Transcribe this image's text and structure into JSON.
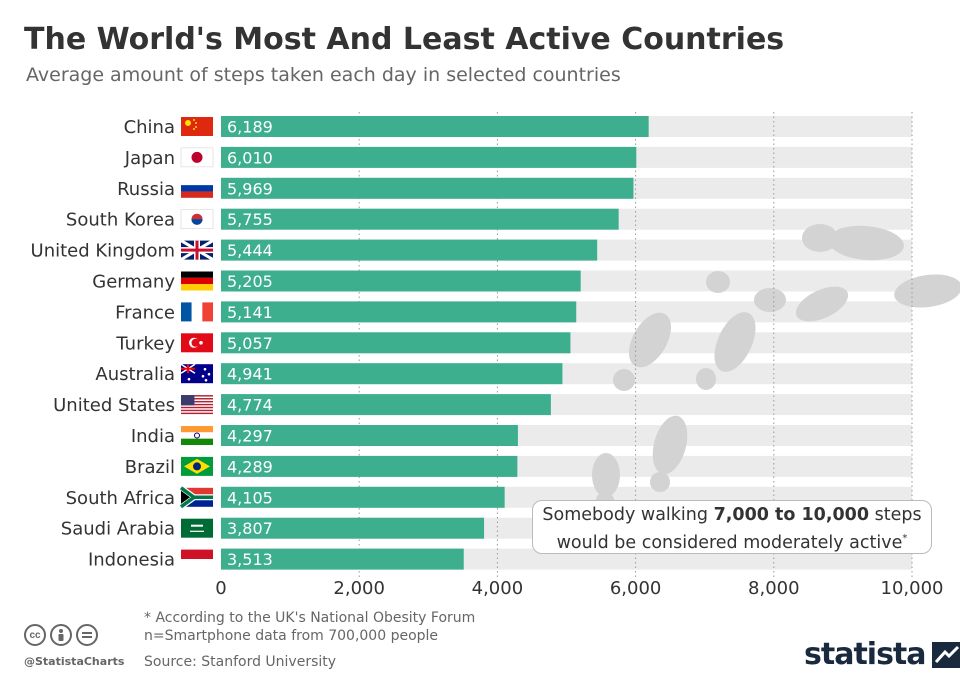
{
  "title": "The World's Most And Least Active Countries",
  "subtitle": "Average amount of steps taken each day in selected countries",
  "annotation": {
    "text_before": "Somebody walking ",
    "text_bold": "7,000 to 10,000",
    "text_after": " steps",
    "line2": "would be considered moderately active",
    "footnote_mark": "*"
  },
  "footnotes": {
    "note": "* According to the UK's National Obesity Forum",
    "n": "n=Smartphone data from 700,000 people",
    "source": "Source: Stanford University"
  },
  "branding": {
    "handle": "@StatistaCharts",
    "logo": "statista",
    "cc_icons": [
      "cc-icon",
      "by-icon",
      "nd-icon"
    ]
  },
  "colors": {
    "bar": "#3daf8f",
    "track": "#ebebeb",
    "active_zone": "#f6f6f6"
  },
  "chart_data": {
    "type": "bar",
    "orientation": "horizontal",
    "categories": [
      "China",
      "Japan",
      "Russia",
      "South Korea",
      "United Kingdom",
      "Germany",
      "France",
      "Turkey",
      "Australia",
      "United States",
      "India",
      "Brazil",
      "South Africa",
      "Saudi Arabia",
      "Indonesia"
    ],
    "values": [
      6189,
      6010,
      5969,
      5755,
      5444,
      5205,
      5141,
      5057,
      4941,
      4774,
      4297,
      4289,
      4105,
      3807,
      3513
    ],
    "value_labels": [
      "6,189",
      "6,010",
      "5,969",
      "5,755",
      "5,444",
      "5,205",
      "5,141",
      "5,057",
      "4,941",
      "4,774",
      "4,297",
      "4,289",
      "4,105",
      "3,807",
      "3,513"
    ],
    "xlim": [
      0,
      10000
    ],
    "xticks": [
      0,
      2000,
      4000,
      6000,
      8000,
      10000
    ],
    "xtick_labels": [
      "0",
      "2,000",
      "4,000",
      "6,000",
      "8,000",
      "10,000"
    ],
    "highlight_range": [
      7000,
      10000
    ],
    "grid": "dotted vertical lines at ticks",
    "xlabel": "",
    "ylabel": ""
  }
}
